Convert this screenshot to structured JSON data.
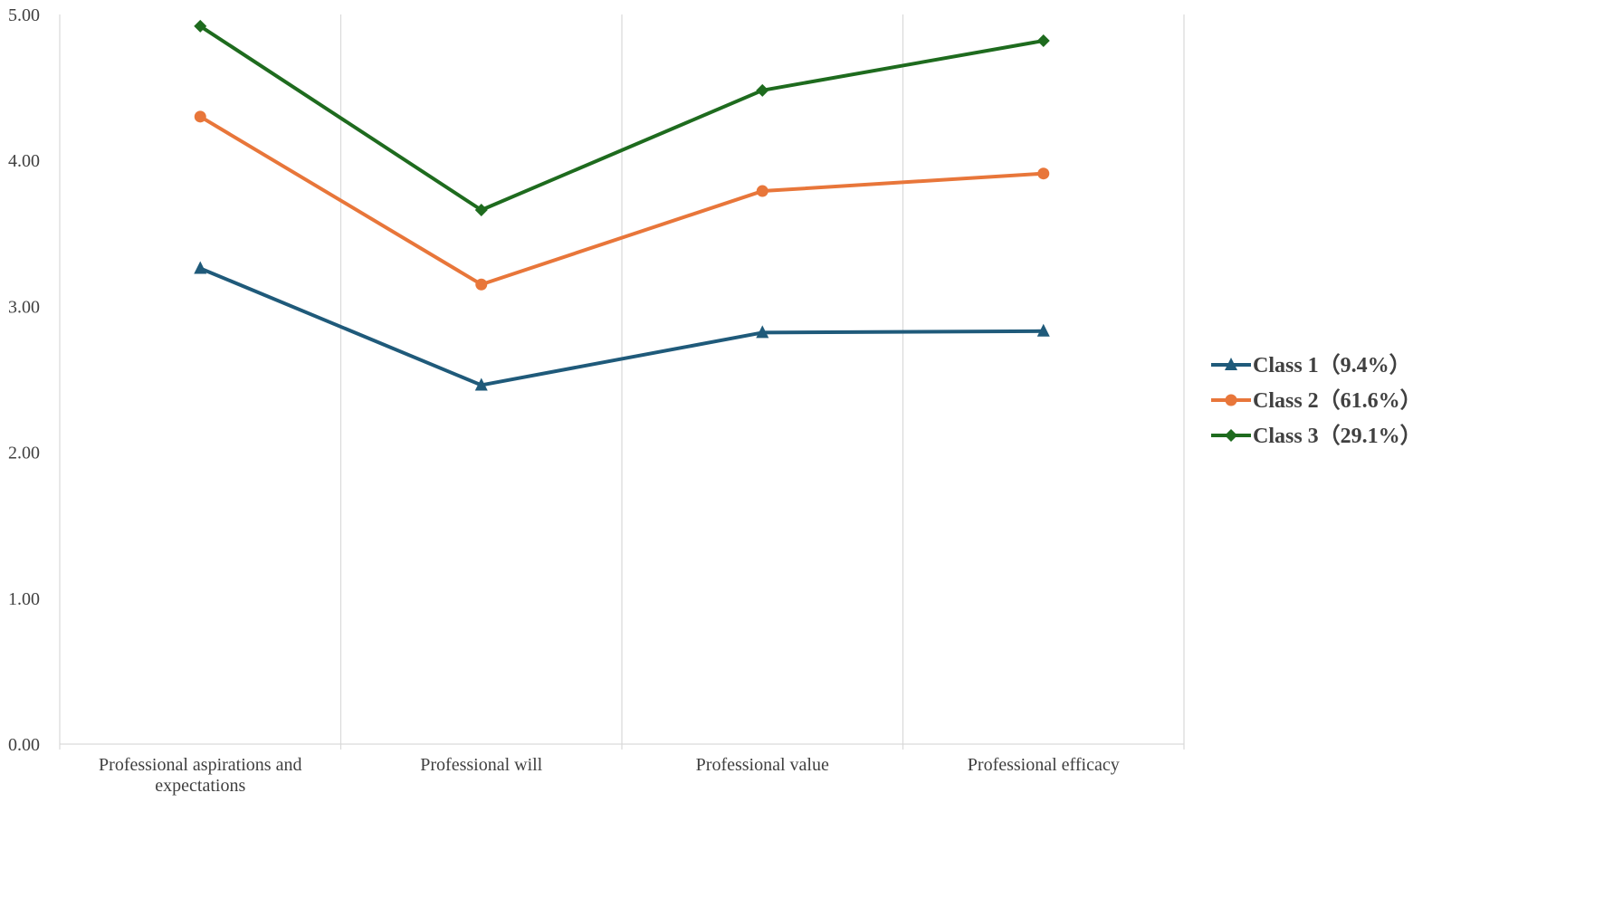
{
  "chart_data": {
    "type": "line",
    "title": "",
    "xlabel": "",
    "ylabel": "",
    "ylim": [
      0,
      5
    ],
    "yticks": [
      "0.00",
      "1.00",
      "2.00",
      "3.00",
      "4.00",
      "5.00"
    ],
    "categories": [
      "Professional aspirations and expectations",
      "Professional will",
      "Professional value",
      "Professional efficacy"
    ],
    "category_lines": [
      [
        "Professional aspirations and",
        "expectations"
      ],
      [
        "Professional will"
      ],
      [
        "Professional value"
      ],
      [
        "Professional efficacy"
      ]
    ],
    "grid": "vertical",
    "legend_position": "right",
    "series": [
      {
        "name": "Class 1（9.4%）",
        "marker": "triangle",
        "color": "#1f5a7a",
        "values": [
          3.26,
          2.46,
          2.82,
          2.83
        ]
      },
      {
        "name": "Class 2（61.6%）",
        "marker": "circle",
        "color": "#e8763a",
        "values": [
          4.3,
          3.15,
          3.79,
          3.91
        ]
      },
      {
        "name": "Class 3（29.1%）",
        "marker": "diamond",
        "color": "#1e6b1e",
        "values": [
          4.92,
          3.66,
          4.48,
          4.82
        ]
      }
    ]
  }
}
